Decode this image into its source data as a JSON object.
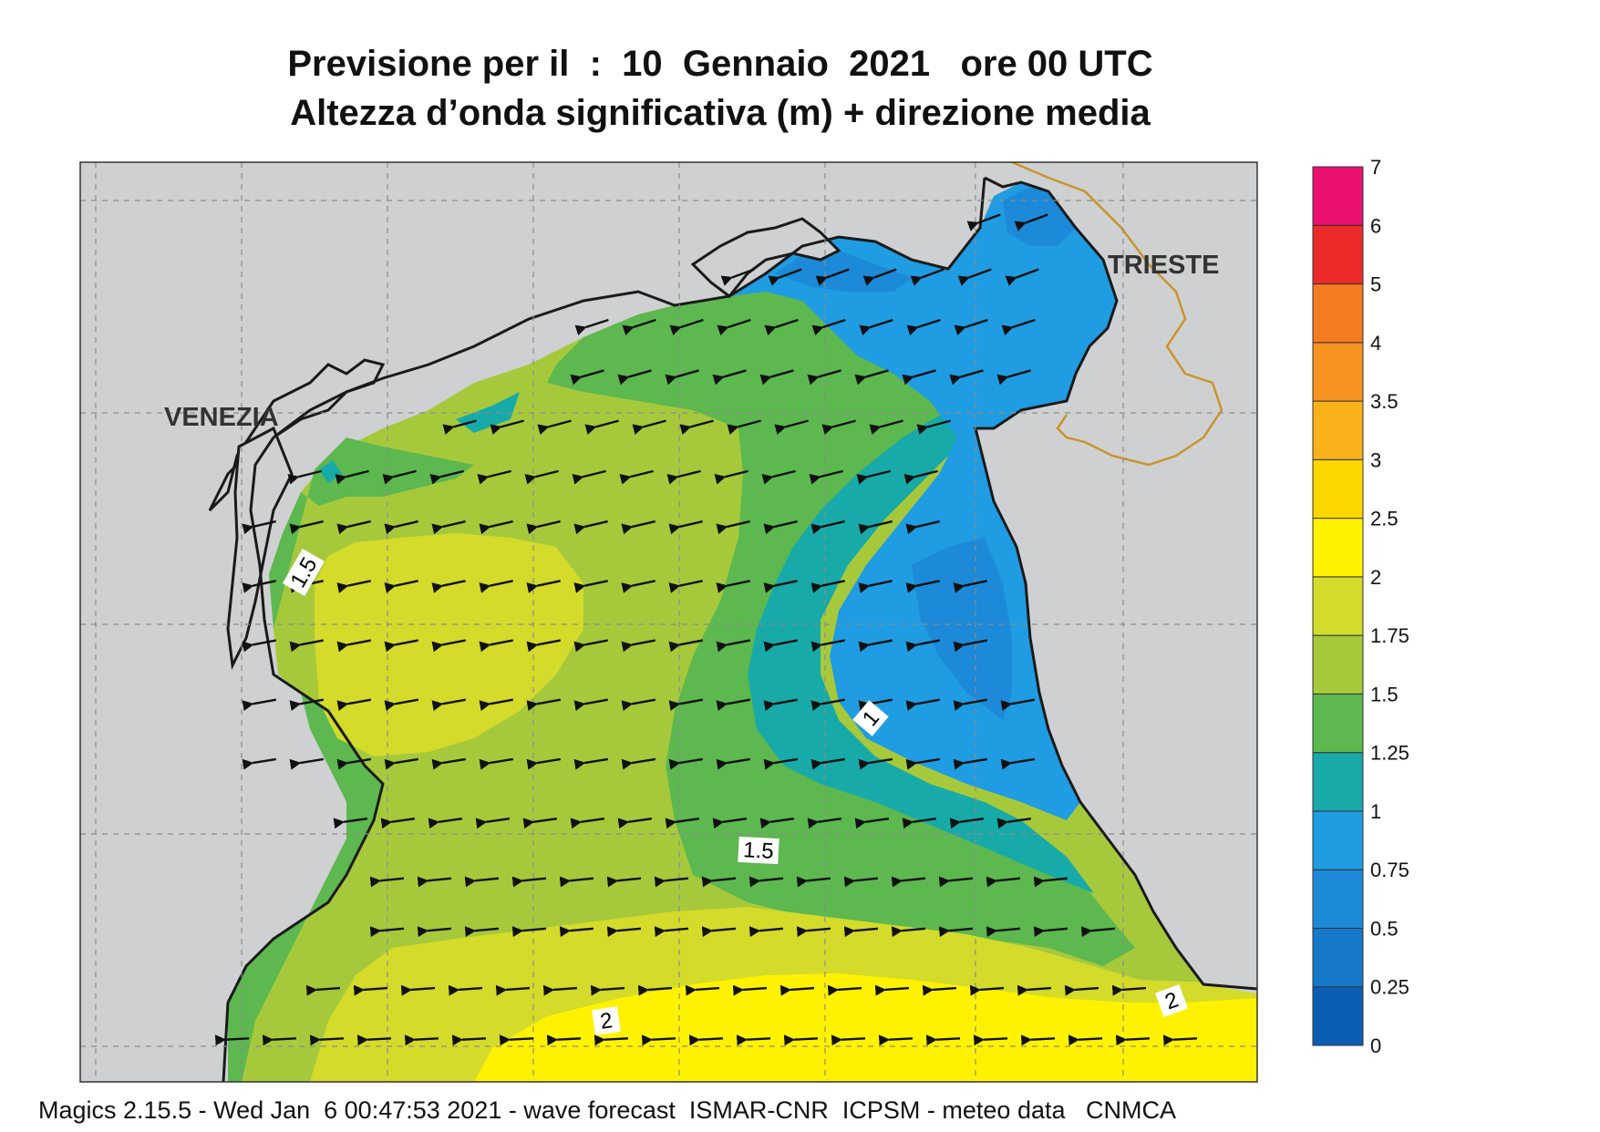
{
  "title": {
    "line1": "Previsione per il  :  10  Gennaio  2021   ore 00 UTC",
    "line2": "Altezza d’onda significativa (m) + direzione media"
  },
  "map": {
    "cities": [
      {
        "id": "venezia",
        "label": "VENEZIA"
      },
      {
        "id": "trieste",
        "label": "TRIESTE"
      }
    ],
    "contour_labels": [
      "1.5",
      "1",
      "1.5",
      "2",
      "2"
    ],
    "wave_direction": "toward west-southwest (arrows point left/down-left)"
  },
  "legend": {
    "ticks": [
      "0",
      "0.25",
      "0.5",
      "0.75",
      "1",
      "1.25",
      "1.5",
      "1.75",
      "2",
      "2.5",
      "3",
      "3.5",
      "4",
      "5",
      "6",
      "7"
    ],
    "colors": [
      "#0a5fb4",
      "#1678c8",
      "#1c8ad8",
      "#1f9ce2",
      "#17aaa8",
      "#5cb84f",
      "#a6c93c",
      "#d4db2a",
      "#fff200",
      "#ffd700",
      "#f9b21a",
      "#f79421",
      "#f37b22",
      "#ec2a2a",
      "#ea1070"
    ]
  },
  "colors": {
    "land": "#cfd0d2",
    "coast": "#1a1a1a",
    "border": "#c8952d",
    "grid": "#8c8c8c"
  },
  "footer": "Magics 2.15.5 - Wed Jan  6 00:47:53 2021 - wave forecast  ISMAR-CNR  ICPSM - meteo data   CNMCA"
}
